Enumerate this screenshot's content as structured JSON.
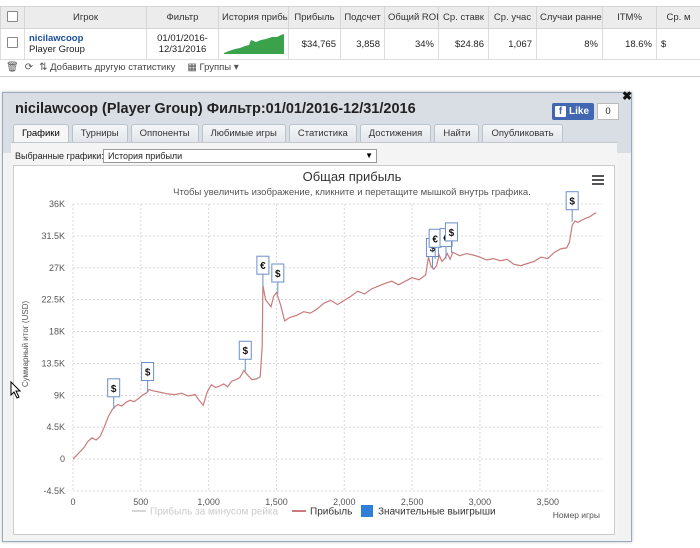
{
  "stats_table": {
    "columns": [
      "Игрок",
      "Фильтр",
      "История прибы",
      "Прибыль",
      "Подсчет",
      "Общий ROI",
      "Ср. ставк",
      "Ср. учас",
      "Случаи ранне",
      "ITM%",
      "Ср. м"
    ],
    "row": {
      "player": "nicilawcoop",
      "group": "Player Group",
      "filter_line1": "01/01/2016-",
      "filter_line2": "12/31/2016",
      "profit": "$34,765",
      "count": "3,858",
      "roi": "34%",
      "avg_stake": "$24.86",
      "avg_entrants": "1,067",
      "early_cases": "8%",
      "itm": "18.6%",
      "avg_m": "$"
    }
  },
  "toolbar": {
    "add_stats_label": "Добавить другую статистику",
    "groups_label": "Группы"
  },
  "panel": {
    "title": "nicilawcoop (Player Group) Фильтр:01/01/2016-12/31/2016",
    "like_label": "Like",
    "like_count": "0",
    "tabs": [
      "Графики",
      "Турниры",
      "Оппоненты",
      "Любимые игры",
      "Статистика",
      "Достижения",
      "Найти",
      "Опубликовать"
    ],
    "active_tab": "Графики",
    "selected_charts_label": "Выбранные графики:",
    "selected_chart_value": "История прибыли"
  },
  "chart_data": {
    "type": "line",
    "title": "Общая прибыль",
    "subtitle": "Чтобы увеличить изображение, кликните и перетащите мышкой внутрь графика.",
    "ylabel": "Суммарный итог (USD)",
    "xlabel": "Номер игры",
    "y_ticks": [
      "36K",
      "31.5K",
      "27K",
      "22.5K",
      "18K",
      "13.5K",
      "9K",
      "4.5K",
      "0",
      "-4.5K"
    ],
    "y_tick_values": [
      36000,
      31500,
      27000,
      22500,
      18000,
      13500,
      9000,
      4500,
      0,
      -4500
    ],
    "x_ticks": [
      "0",
      "500",
      "1,000",
      "1,500",
      "2,000",
      "2,500",
      "3,000",
      "3,500"
    ],
    "x_tick_values": [
      0,
      500,
      1000,
      1500,
      2000,
      2500,
      3000,
      3500
    ],
    "xlim": [
      0,
      3900
    ],
    "ylim": [
      -4500,
      36000
    ],
    "grid": true,
    "legend_placement": "bottom",
    "series": [
      {
        "name": "Прибыль",
        "color": "#c97b7b",
        "x": [
          0,
          20,
          50,
          80,
          110,
          140,
          170,
          200,
          230,
          260,
          290,
          310,
          330,
          360,
          390,
          420,
          450,
          480,
          510,
          540,
          560,
          600,
          650,
          700,
          750,
          800,
          850,
          900,
          930,
          960,
          990,
          1020,
          1050,
          1080,
          1110,
          1140,
          1170,
          1200,
          1230,
          1260,
          1290,
          1320,
          1350,
          1380,
          1395,
          1400,
          1420,
          1440,
          1460,
          1480,
          1500,
          1530,
          1560,
          1600,
          1650,
          1700,
          1750,
          1800,
          1850,
          1900,
          1950,
          2000,
          2050,
          2100,
          2150,
          2200,
          2250,
          2300,
          2350,
          2400,
          2450,
          2500,
          2550,
          2600,
          2620,
          2640,
          2660,
          2680,
          2700,
          2720,
          2740,
          2760,
          2780,
          2800,
          2850,
          2900,
          2950,
          3000,
          3050,
          3100,
          3150,
          3200,
          3250,
          3300,
          3350,
          3400,
          3450,
          3500,
          3550,
          3600,
          3640,
          3660,
          3680,
          3700,
          3720,
          3750,
          3780,
          3810,
          3840,
          3858
        ],
        "y": [
          0,
          400,
          1000,
          1600,
          2500,
          3000,
          2700,
          3200,
          4500,
          6000,
          7000,
          7400,
          7700,
          7500,
          8000,
          8300,
          8100,
          8500,
          9000,
          9300,
          9800,
          9600,
          9400,
          9200,
          9100,
          9300,
          8900,
          9100,
          8300,
          7600,
          9500,
          10500,
          10100,
          10300,
          10600,
          10200,
          11000,
          11200,
          11500,
          12500,
          11800,
          11200,
          11300,
          11600,
          16000,
          24500,
          22500,
          22000,
          21500,
          23000,
          23500,
          21800,
          19500,
          20000,
          20300,
          20800,
          20600,
          21200,
          22000,
          22400,
          21800,
          22400,
          23000,
          23700,
          23300,
          24000,
          24400,
          24800,
          25100,
          24600,
          25100,
          25600,
          25300,
          26000,
          28500,
          27200,
          26800,
          27300,
          28800,
          27900,
          28300,
          29000,
          28200,
          29200,
          28700,
          29000,
          28800,
          28500,
          28100,
          28300,
          28000,
          28200,
          27500,
          27300,
          27600,
          27900,
          28500,
          28300,
          29200,
          29700,
          29800,
          30600,
          33000,
          33600,
          33400,
          33700,
          34000,
          34200,
          34600,
          34765
        ]
      },
      {
        "name": "Прибыль за минусом рейка",
        "color": "#dddddd",
        "hidden": true,
        "x": [],
        "y": []
      }
    ],
    "flags": [
      {
        "x": 300,
        "y": 7100,
        "symbol": "$"
      },
      {
        "x": 550,
        "y": 9400,
        "symbol": "$"
      },
      {
        "x": 1270,
        "y": 12400,
        "symbol": "$"
      },
      {
        "x": 1400,
        "y": 24400,
        "symbol": "€"
      },
      {
        "x": 1510,
        "y": 23300,
        "symbol": "$"
      },
      {
        "x": 2650,
        "y": 26900,
        "symbol": "$"
      },
      {
        "x": 2670,
        "y": 28200,
        "symbol": "€"
      },
      {
        "x": 2750,
        "y": 28300,
        "symbol": "€"
      },
      {
        "x": 2790,
        "y": 29100,
        "symbol": "$"
      },
      {
        "x": 3680,
        "y": 33500,
        "symbol": "$"
      }
    ],
    "legend": [
      {
        "label": "Прибыль за минусом рейка",
        "kind": "line",
        "color": "#d6d6d6",
        "dim": true
      },
      {
        "label": "Прибыль",
        "kind": "line",
        "color": "#c97b7b",
        "dim": false
      },
      {
        "label": "Значительные выигрыши",
        "kind": "box",
        "color": "#2f7ed8",
        "dim": false
      }
    ],
    "menu_icon": "hamburger-menu-icon"
  }
}
